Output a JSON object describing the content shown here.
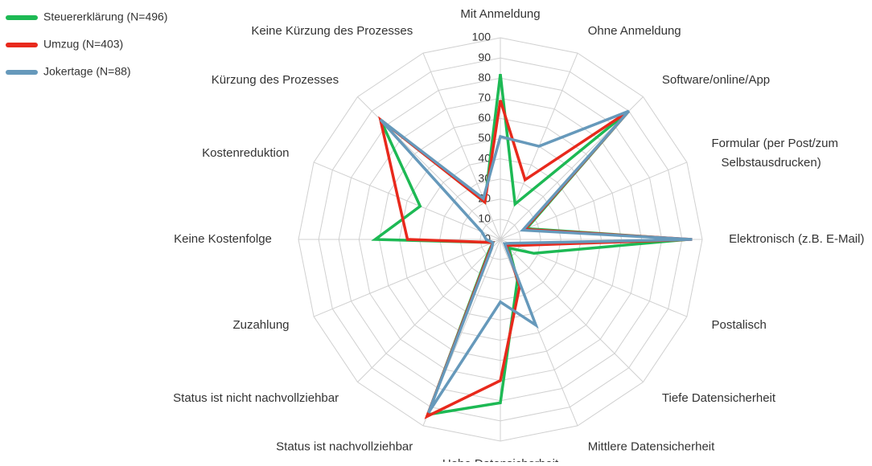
{
  "chart_data": {
    "type": "radar",
    "categories": [
      "Mit Anmeldung",
      "Ohne Anmeldung",
      "Software/online/App",
      "Formular (per Post/zum Selbstausdrucken)",
      "Elektronisch (z.B. E-Mail)",
      "Postalisch",
      "Tiefe Datensicherheit",
      "Mittlere Datensicherheit",
      "Hohe Datensicherheit",
      "Status ist nachvollziehbar",
      "Status ist nicht nachvollziehbar",
      "Zuzahlung",
      "Keine Kostenfolge",
      "Kostenreduktion",
      "Kürzung des Prozesses",
      "Keine Kürzung des Prozesses"
    ],
    "series": [
      {
        "name": "Steuererklärung (N=496)",
        "color": "#1db954",
        "values": [
          82,
          19,
          90,
          14,
          93,
          18,
          6,
          22,
          81,
          94,
          8,
          4,
          62,
          43,
          84,
          20
        ]
      },
      {
        "name": "Umzug (N=403)",
        "color": "#e8291c",
        "values": [
          69,
          32,
          90,
          13,
          95,
          8,
          4,
          25,
          70,
          95,
          7,
          4,
          46,
          55,
          84,
          20
        ]
      },
      {
        "name": "Jokertage (N=88)",
        "color": "#6699bb",
        "values": [
          51,
          50,
          90,
          12,
          95,
          5,
          3,
          46,
          31,
          93,
          6,
          4,
          7,
          10,
          84,
          22
        ]
      }
    ],
    "ylim": [
      0,
      100
    ],
    "yticks": [
      0,
      10,
      20,
      30,
      40,
      50,
      60,
      70,
      80,
      90,
      100
    ],
    "grid": true,
    "legend": "top-left"
  }
}
